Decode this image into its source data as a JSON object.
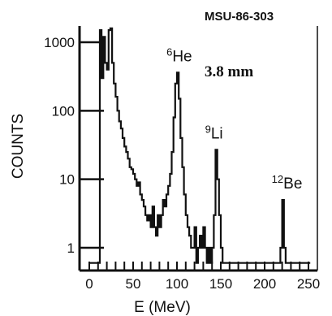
{
  "chart_data": {
    "type": "line",
    "title": "",
    "corner_label": "MSU-86-303",
    "annotation": "3.8 mm",
    "xlabel": "E (MeV)",
    "ylabel": "COUNTS",
    "xlim": [
      0,
      250
    ],
    "ylim": [
      0.5,
      2000
    ],
    "yscale": "log",
    "x_ticks": [
      0,
      50,
      100,
      150,
      200,
      250
    ],
    "x_tick_labels": [
      "0",
      "50",
      "100",
      "150",
      "200",
      "250"
    ],
    "y_ticks": [
      1,
      10,
      100,
      1000
    ],
    "y_tick_labels": [
      "1",
      "10",
      "100",
      "1000"
    ],
    "grid": false,
    "peaks": [
      {
        "mass": "6",
        "element": "He",
        "x": 101,
        "y": 360
      },
      {
        "mass": "9",
        "element": "Li",
        "x": 145,
        "y": 27
      },
      {
        "mass": "12",
        "element": "Be",
        "x": 221,
        "y": 5
      }
    ],
    "series": [
      {
        "x": [
          0,
          2,
          4,
          6,
          8,
          10,
          12,
          14,
          16,
          18,
          20,
          22,
          24,
          26,
          28,
          30,
          32,
          34,
          36,
          38,
          40,
          42,
          44,
          46,
          48,
          50,
          52,
          54,
          56,
          58,
          60,
          62,
          64,
          66,
          68,
          70,
          72,
          74,
          76,
          78,
          80,
          82,
          84,
          86,
          88,
          90,
          92,
          94,
          96,
          98,
          100,
          102,
          104,
          106,
          108,
          110,
          112,
          114,
          116,
          118,
          120,
          122,
          124,
          126,
          128,
          130,
          132,
          134,
          136,
          138,
          140,
          142,
          144,
          146,
          148,
          150,
          152,
          154,
          156,
          158,
          160,
          162,
          164,
          166,
          168,
          170,
          172,
          174,
          176,
          178,
          180,
          182,
          184,
          186,
          188,
          190,
          192,
          194,
          196,
          198,
          200,
          202,
          204,
          206,
          208,
          210,
          212,
          214,
          216,
          218,
          220,
          222,
          224,
          226,
          228,
          230,
          232,
          234,
          236,
          238,
          240,
          242,
          244,
          246,
          248,
          250
        ],
        "values": [
          0.6,
          0.6,
          0.6,
          0.6,
          0.6,
          0.6,
          1500,
          300,
          1200,
          500,
          400,
          1500,
          1600,
          500,
          250,
          160,
          100,
          70,
          55,
          40,
          30,
          25,
          20,
          15,
          14,
          12,
          10,
          8,
          9,
          6,
          5,
          4,
          3,
          2.5,
          3,
          2,
          4,
          2,
          1.5,
          3,
          2,
          3,
          5,
          4,
          6,
          8,
          12,
          25,
          80,
          250,
          360,
          150,
          40,
          15,
          6,
          3,
          2,
          1.5,
          1,
          1,
          2,
          0.6,
          1,
          1.5,
          1,
          2,
          1,
          0.6,
          1,
          0.6,
          1,
          3,
          27,
          10,
          3,
          1,
          0.6,
          0.6,
          0.6,
          0.6,
          0.6,
          0.6,
          0.6,
          0.6,
          0.6,
          0.6,
          0.6,
          0.6,
          0.6,
          0.6,
          0.6,
          0.6,
          0.6,
          0.6,
          0.6,
          0.6,
          0.6,
          0.6,
          0.6,
          0.6,
          0.6,
          0.6,
          0.6,
          0.6,
          0.6,
          0.6,
          0.6,
          0.6,
          0.6,
          1,
          5,
          1,
          0.6,
          0.6,
          0.6,
          0.6,
          0.6,
          0.6,
          0.6,
          0.6,
          0.6,
          0.6,
          0.6,
          0.6,
          0.6,
          0.6
        ]
      }
    ]
  }
}
